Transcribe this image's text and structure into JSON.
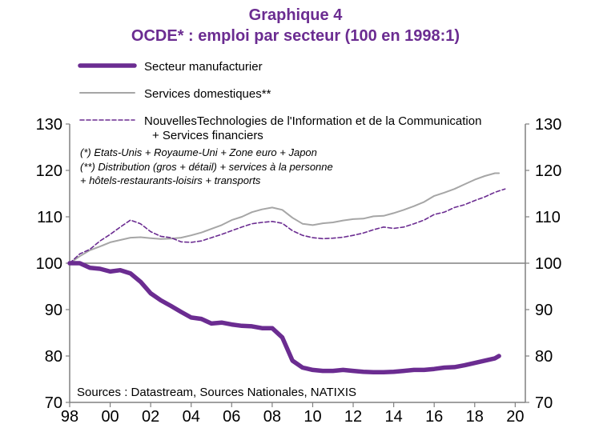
{
  "chart_data": {
    "type": "line",
    "title": "Graphique 4",
    "subtitle": "OCDE* : emploi par secteur (100 en 1998:1)",
    "x_tick_labels": [
      "98",
      "00",
      "02",
      "04",
      "06",
      "08",
      "10",
      "12",
      "14",
      "16",
      "18",
      "20"
    ],
    "y_tick_labels": [
      "70",
      "80",
      "90",
      "100",
      "110",
      "120",
      "130"
    ],
    "x_range": [
      1998,
      2020.5
    ],
    "ylim": [
      70,
      130
    ],
    "grid": false,
    "reference_line": 100,
    "legend_position": "top-left",
    "notes": [
      "(*) Etats-Unis + Royaume-Uni + Zone euro + Japon",
      "(**) Distribution (gros + détail) + services à la personne",
      "+ hôtels-restaurants-loisirs + transports"
    ],
    "source": "Sources : Datastream, Sources Nationales, NATIXIS",
    "series": [
      {
        "name": "Secteur manufacturier",
        "legend_label": "Secteur manufacturier",
        "color": "#6b2c91",
        "style": "solid-thick",
        "x": [
          1998.0,
          1998.5,
          1999.0,
          1999.5,
          2000.0,
          2000.5,
          2001.0,
          2001.5,
          2002.0,
          2002.5,
          2003.0,
          2003.5,
          2004.0,
          2004.5,
          2005.0,
          2005.5,
          2006.0,
          2006.5,
          2007.0,
          2007.5,
          2008.0,
          2008.5,
          2009.0,
          2009.5,
          2010.0,
          2010.5,
          2011.0,
          2011.5,
          2012.0,
          2012.5,
          2013.0,
          2013.5,
          2014.0,
          2014.5,
          2015.0,
          2015.5,
          2016.0,
          2016.5,
          2017.0,
          2017.5,
          2018.0,
          2018.5,
          2019.0,
          2019.2
        ],
        "y": [
          100.0,
          100.0,
          99.0,
          98.8,
          98.2,
          98.5,
          97.8,
          96.0,
          93.5,
          92.0,
          90.8,
          89.5,
          88.3,
          88.0,
          87.0,
          87.2,
          86.8,
          86.5,
          86.4,
          86.0,
          86.0,
          84.0,
          79.0,
          77.5,
          77.0,
          76.8,
          76.8,
          77.0,
          76.8,
          76.6,
          76.5,
          76.5,
          76.6,
          76.8,
          77.0,
          77.0,
          77.2,
          77.5,
          77.6,
          78.0,
          78.5,
          79.0,
          79.5,
          80.0
        ]
      },
      {
        "name": "Services domestiques**",
        "legend_label": "Services domestiques**",
        "color": "#a6a6a6",
        "style": "solid-thin",
        "x": [
          1998.0,
          1998.5,
          1999.0,
          1999.5,
          2000.0,
          2000.5,
          2001.0,
          2001.5,
          2002.0,
          2002.5,
          2003.0,
          2003.5,
          2004.0,
          2004.5,
          2005.0,
          2005.5,
          2006.0,
          2006.5,
          2007.0,
          2007.5,
          2008.0,
          2008.5,
          2009.0,
          2009.5,
          2010.0,
          2010.5,
          2011.0,
          2011.5,
          2012.0,
          2012.5,
          2013.0,
          2013.5,
          2014.0,
          2014.5,
          2015.0,
          2015.5,
          2016.0,
          2016.5,
          2017.0,
          2017.5,
          2018.0,
          2018.5,
          2019.0,
          2019.2
        ],
        "y": [
          100.0,
          101.5,
          102.8,
          103.6,
          104.5,
          105.0,
          105.5,
          105.6,
          105.4,
          105.2,
          105.3,
          105.5,
          106.0,
          106.6,
          107.4,
          108.2,
          109.3,
          110.0,
          111.0,
          111.6,
          112.0,
          111.5,
          109.8,
          108.5,
          108.2,
          108.6,
          108.8,
          109.2,
          109.5,
          109.6,
          110.1,
          110.2,
          110.8,
          111.5,
          112.3,
          113.2,
          114.5,
          115.2,
          116.0,
          117.0,
          118.0,
          118.8,
          119.4,
          119.4
        ]
      },
      {
        "name": "NouvellesTechnologies de l'Information et de la Communication + Services financiers",
        "legend_label": [
          "NouvellesTechnologies de l'Information et de la Communication",
          "+ Services financiers"
        ],
        "color": "#6b2c91",
        "style": "dashed",
        "x": [
          1998.0,
          1998.5,
          1999.0,
          1999.5,
          2000.0,
          2000.5,
          2001.0,
          2001.5,
          2002.0,
          2002.5,
          2003.0,
          2003.5,
          2004.0,
          2004.5,
          2005.0,
          2005.5,
          2006.0,
          2006.5,
          2007.0,
          2007.5,
          2008.0,
          2008.5,
          2009.0,
          2009.5,
          2010.0,
          2010.5,
          2011.0,
          2011.5,
          2012.0,
          2012.5,
          2013.0,
          2013.5,
          2014.0,
          2014.5,
          2015.0,
          2015.5,
          2016.0,
          2016.5,
          2017.0,
          2017.5,
          2018.0,
          2018.5,
          2019.0,
          2019.5
        ],
        "y": [
          100.0,
          102.0,
          103.0,
          104.8,
          106.2,
          107.8,
          109.3,
          108.5,
          106.8,
          105.8,
          105.5,
          104.6,
          104.5,
          104.8,
          105.5,
          106.2,
          107.0,
          107.8,
          108.5,
          108.8,
          109.0,
          108.6,
          107.0,
          106.0,
          105.5,
          105.3,
          105.4,
          105.6,
          106.0,
          106.5,
          107.2,
          107.8,
          107.5,
          107.8,
          108.5,
          109.3,
          110.5,
          111.0,
          112.0,
          112.6,
          113.5,
          114.3,
          115.3,
          116.0
        ]
      }
    ]
  }
}
